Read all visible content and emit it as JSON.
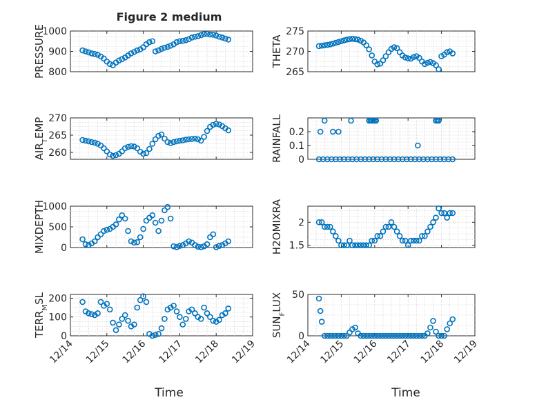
{
  "figure": {
    "title": "Figure 2 medium",
    "xlabel": "Time",
    "x_tick_labels": [
      "12/14",
      "12/15",
      "12/16",
      "12/17",
      "12/18",
      "12/19"
    ],
    "marker_color": "#0072BD"
  },
  "chart_data": [
    {
      "type": "scatter",
      "ylabel": "PRESSURE",
      "ylim": [
        800,
        1000
      ],
      "yticks": [
        800,
        900,
        1000
      ],
      "ytick_labels": [
        "800",
        "900",
        "1000"
      ],
      "minor_y_grid": true,
      "x": [
        "12/14 08:00",
        "12/14 10:00",
        "12/14 12:00",
        "12/14 14:00",
        "12/14 16:00",
        "12/14 18:00",
        "12/14 20:00",
        "12/14 22:00",
        "12/15 00:00",
        "12/15 02:00",
        "12/15 04:00",
        "12/15 06:00",
        "12/15 08:00",
        "12/15 10:00",
        "12/15 12:00",
        "12/15 14:00",
        "12/15 16:00",
        "12/15 18:00",
        "12/15 20:00",
        "12/15 22:00",
        "12/16 00:00",
        "12/16 02:00",
        "12/16 04:00",
        "12/16 06:00",
        "12/16 08:00",
        "12/16 10:00",
        "12/16 12:00",
        "12/16 14:00",
        "12/16 16:00",
        "12/16 18:00",
        "12/16 20:00",
        "12/16 22:00",
        "12/17 00:00",
        "12/17 02:00",
        "12/17 04:00",
        "12/17 06:00",
        "12/17 08:00",
        "12/17 10:00",
        "12/17 12:00",
        "12/17 14:00",
        "12/17 16:00",
        "12/17 18:00",
        "12/17 20:00",
        "12/17 22:00",
        "12/18 00:00",
        "12/18 02:00",
        "12/18 04:00",
        "12/18 06:00",
        "12/18 08:00"
      ],
      "y": [
        905,
        900,
        895,
        890,
        887,
        883,
        875,
        865,
        850,
        838,
        832,
        845,
        855,
        862,
        870,
        880,
        890,
        897,
        905,
        910,
        920,
        935,
        945,
        950,
        900,
        905,
        912,
        918,
        922,
        928,
        935,
        945,
        950,
        952,
        955,
        960,
        968,
        972,
        975,
        980,
        985,
        986,
        983,
        982,
        978,
        972,
        968,
        963,
        958
      ]
    },
    {
      "type": "scatter",
      "ylabel": "THETA",
      "ylim": [
        265,
        275
      ],
      "yticks": [
        265,
        270,
        275
      ],
      "ytick_labels": [
        "265",
        "270",
        "275"
      ],
      "minor_y_grid": true,
      "x": [
        "12/14 08:00",
        "12/14 10:00",
        "12/14 12:00",
        "12/14 14:00",
        "12/14 16:00",
        "12/14 18:00",
        "12/14 20:00",
        "12/14 22:00",
        "12/15 00:00",
        "12/15 02:00",
        "12/15 04:00",
        "12/15 06:00",
        "12/15 08:00",
        "12/15 10:00",
        "12/15 12:00",
        "12/15 14:00",
        "12/15 16:00",
        "12/15 18:00",
        "12/15 20:00",
        "12/15 22:00",
        "12/16 00:00",
        "12/16 02:00",
        "12/16 04:00",
        "12/16 06:00",
        "12/16 08:00",
        "12/16 10:00",
        "12/16 12:00",
        "12/16 14:00",
        "12/16 16:00",
        "12/16 18:00",
        "12/16 20:00",
        "12/16 22:00",
        "12/17 00:00",
        "12/17 02:00",
        "12/17 04:00",
        "12/17 06:00",
        "12/17 08:00",
        "12/17 10:00",
        "12/17 12:00",
        "12/17 14:00",
        "12/17 16:00",
        "12/17 18:00",
        "12/17 20:00",
        "12/17 22:00",
        "12/18 00:00",
        "12/18 02:00",
        "12/18 04:00",
        "12/18 06:00",
        "12/18 08:00"
      ],
      "y": [
        271.3,
        271.4,
        271.5,
        271.6,
        271.7,
        271.9,
        272.1,
        272.3,
        272.5,
        272.7,
        272.9,
        273.0,
        273.1,
        273.0,
        272.9,
        272.6,
        272.2,
        271.5,
        270.5,
        269.0,
        267.5,
        266.8,
        267.0,
        267.8,
        268.8,
        269.8,
        270.6,
        271.0,
        270.8,
        269.8,
        269.0,
        268.5,
        268.3,
        268.2,
        268.6,
        268.8,
        268.4,
        267.5,
        266.9,
        267.2,
        267.4,
        267.1,
        266.6,
        265.6,
        268.8,
        269.2,
        269.8,
        270.0,
        269.5
      ]
    },
    {
      "type": "scatter",
      "ylabel": "AIR_TEMP",
      "ylim": [
        258,
        270
      ],
      "yticks": [
        260,
        265,
        270
      ],
      "ytick_labels": [
        "260",
        "265",
        "270"
      ],
      "minor_y_grid": true,
      "x": [
        "12/14 08:00",
        "12/14 10:00",
        "12/14 12:00",
        "12/14 14:00",
        "12/14 16:00",
        "12/14 18:00",
        "12/14 20:00",
        "12/14 22:00",
        "12/15 00:00",
        "12/15 02:00",
        "12/15 04:00",
        "12/15 06:00",
        "12/15 08:00",
        "12/15 10:00",
        "12/15 12:00",
        "12/15 14:00",
        "12/15 16:00",
        "12/15 18:00",
        "12/15 20:00",
        "12/15 22:00",
        "12/16 00:00",
        "12/16 02:00",
        "12/16 04:00",
        "12/16 06:00",
        "12/16 08:00",
        "12/16 10:00",
        "12/16 12:00",
        "12/16 14:00",
        "12/16 16:00",
        "12/16 18:00",
        "12/16 20:00",
        "12/16 22:00",
        "12/17 00:00",
        "12/17 02:00",
        "12/17 04:00",
        "12/17 06:00",
        "12/17 08:00",
        "12/17 10:00",
        "12/17 12:00",
        "12/17 14:00",
        "12/17 16:00",
        "12/17 18:00",
        "12/17 20:00",
        "12/17 22:00",
        "12/18 00:00",
        "12/18 02:00",
        "12/18 04:00",
        "12/18 06:00",
        "12/18 08:00"
      ],
      "y": [
        263.6,
        263.4,
        263.2,
        263.0,
        262.8,
        262.5,
        262.0,
        261.2,
        260.3,
        259.4,
        259.0,
        259.2,
        259.6,
        260.3,
        261.2,
        261.6,
        261.8,
        261.7,
        261.2,
        260.2,
        259.6,
        259.8,
        261.0,
        262.5,
        263.8,
        264.8,
        265.2,
        264.0,
        263.0,
        262.7,
        263.0,
        263.2,
        263.4,
        263.5,
        263.7,
        263.8,
        263.9,
        264.0,
        263.8,
        263.4,
        264.5,
        266.2,
        267.4,
        268.0,
        268.3,
        268.1,
        267.6,
        267.0,
        266.4
      ]
    },
    {
      "type": "scatter",
      "ylabel": "RAINFALL",
      "ylim": [
        0,
        0.3
      ],
      "yticks": [
        0,
        0.1,
        0.2
      ],
      "ytick_labels": [
        "0",
        "0.1",
        "0.2"
      ],
      "minor_y_grid": true,
      "x": [
        "12/14 08:00",
        "12/14 11:00",
        "12/14 14:00",
        "12/14 17:00",
        "12/14 20:00",
        "12/14 23:00",
        "12/15 02:00",
        "12/15 05:00",
        "12/15 08:00",
        "12/15 11:00",
        "12/15 14:00",
        "12/15 17:00",
        "12/15 20:00",
        "12/15 23:00",
        "12/16 02:00",
        "12/16 05:00",
        "12/16 08:00",
        "12/16 11:00",
        "12/16 14:00",
        "12/16 17:00",
        "12/16 20:00",
        "12/16 23:00",
        "12/17 02:00",
        "12/17 05:00",
        "12/17 08:00",
        "12/17 11:00",
        "12/17 14:00",
        "12/17 17:00",
        "12/17 20:00",
        "12/17 23:00",
        "12/18 02:00",
        "12/18 05:00",
        "12/18 08:00",
        "12/14 09:00",
        "12/14 12:00",
        "12/14 18:00",
        "12/14 22:00",
        "12/15 07:00",
        "12/15 20:00",
        "12/15 21:00",
        "12/15 22:00",
        "12/15 23:00",
        "12/16 00:00",
        "12/16 01:00",
        "12/17 07:00",
        "12/17 20:00",
        "12/17 21:00",
        "12/17 22:00"
      ],
      "y": [
        0,
        0,
        0,
        0,
        0,
        0,
        0,
        0,
        0,
        0,
        0,
        0,
        0,
        0,
        0,
        0,
        0,
        0,
        0,
        0,
        0,
        0,
        0,
        0,
        0,
        0,
        0,
        0,
        0,
        0,
        0,
        0,
        0,
        0.2,
        0.28,
        0.2,
        0.2,
        0.28,
        0.28,
        0.28,
        0.28,
        0.28,
        0.28,
        0.28,
        0.1,
        0.28,
        0.28,
        0.28
      ]
    },
    {
      "type": "scatter",
      "ylabel": "MIXDEPTH",
      "ylim": [
        0,
        1000
      ],
      "yticks": [
        0,
        500,
        1000
      ],
      "ytick_labels": [
        "0",
        "500",
        "1000"
      ],
      "minor_y_grid": true,
      "x": [
        "12/14 08:00",
        "12/14 10:00",
        "12/14 12:00",
        "12/14 14:00",
        "12/14 16:00",
        "12/14 18:00",
        "12/14 20:00",
        "12/14 22:00",
        "12/15 00:00",
        "12/15 02:00",
        "12/15 04:00",
        "12/15 06:00",
        "12/15 08:00",
        "12/15 10:00",
        "12/15 12:00",
        "12/15 14:00",
        "12/15 16:00",
        "12/15 18:00",
        "12/15 20:00",
        "12/15 22:00",
        "12/16 00:00",
        "12/16 02:00",
        "12/16 04:00",
        "12/16 06:00",
        "12/16 08:00",
        "12/16 10:00",
        "12/16 12:00",
        "12/16 14:00",
        "12/16 16:00",
        "12/16 18:00",
        "12/16 20:00",
        "12/16 22:00",
        "12/17 00:00",
        "12/17 02:00",
        "12/17 04:00",
        "12/17 06:00",
        "12/17 08:00",
        "12/17 10:00",
        "12/17 12:00",
        "12/17 14:00",
        "12/17 16:00",
        "12/17 18:00",
        "12/17 20:00",
        "12/17 22:00",
        "12/18 00:00",
        "12/18 02:00",
        "12/18 04:00",
        "12/18 06:00",
        "12/18 08:00"
      ],
      "y": [
        200,
        80,
        60,
        100,
        150,
        250,
        320,
        400,
        430,
        450,
        500,
        560,
        680,
        780,
        700,
        400,
        150,
        120,
        130,
        250,
        450,
        650,
        720,
        780,
        600,
        400,
        650,
        900,
        980,
        700,
        30,
        10,
        40,
        60,
        100,
        150,
        120,
        60,
        20,
        10,
        30,
        80,
        250,
        320,
        10,
        40,
        60,
        100,
        150
      ]
    },
    {
      "type": "scatter",
      "ylabel": "H2OMIXRA",
      "ylim": [
        1.45,
        2.35
      ],
      "yticks": [
        1.5,
        2
      ],
      "ytick_labels": [
        "1.5",
        "2"
      ],
      "minor_y_grid": true,
      "x": [
        "12/14 08:00",
        "12/14 10:00",
        "12/14 12:00",
        "12/14 14:00",
        "12/14 16:00",
        "12/14 18:00",
        "12/14 20:00",
        "12/14 22:00",
        "12/15 00:00",
        "12/15 02:00",
        "12/15 04:00",
        "12/15 06:00",
        "12/15 08:00",
        "12/15 10:00",
        "12/15 12:00",
        "12/15 14:00",
        "12/15 16:00",
        "12/15 18:00",
        "12/15 20:00",
        "12/15 22:00",
        "12/16 00:00",
        "12/16 02:00",
        "12/16 04:00",
        "12/16 06:00",
        "12/16 08:00",
        "12/16 10:00",
        "12/16 12:00",
        "12/16 14:00",
        "12/16 16:00",
        "12/16 18:00",
        "12/16 20:00",
        "12/16 22:00",
        "12/17 00:00",
        "12/17 02:00",
        "12/17 04:00",
        "12/17 06:00",
        "12/17 08:00",
        "12/17 10:00",
        "12/17 12:00",
        "12/17 14:00",
        "12/17 16:00",
        "12/17 18:00",
        "12/17 20:00",
        "12/17 22:00",
        "12/18 00:00",
        "12/18 02:00",
        "12/18 04:00",
        "12/18 06:00",
        "12/18 08:00"
      ],
      "y": [
        2.0,
        2.0,
        1.9,
        1.9,
        1.9,
        1.8,
        1.7,
        1.6,
        1.5,
        1.5,
        1.5,
        1.6,
        1.5,
        1.5,
        1.5,
        1.5,
        1.5,
        1.5,
        1.5,
        1.6,
        1.6,
        1.7,
        1.7,
        1.8,
        1.9,
        1.9,
        2.0,
        1.9,
        1.8,
        1.7,
        1.6,
        1.6,
        1.5,
        1.6,
        1.6,
        1.6,
        1.6,
        1.7,
        1.7,
        1.8,
        1.9,
        2.0,
        2.1,
        2.3,
        2.2,
        2.2,
        2.1,
        2.2,
        2.2
      ]
    },
    {
      "type": "scatter",
      "ylabel": "TERR_MSL",
      "ylim": [
        0,
        220
      ],
      "yticks": [
        0,
        100,
        200
      ],
      "ytick_labels": [
        "0",
        "100",
        "200"
      ],
      "minor_y_grid": true,
      "x": [
        "12/14 08:00",
        "12/14 10:00",
        "12/14 12:00",
        "12/14 14:00",
        "12/14 16:00",
        "12/14 18:00",
        "12/14 20:00",
        "12/14 22:00",
        "12/15 00:00",
        "12/15 02:00",
        "12/15 04:00",
        "12/15 06:00",
        "12/15 08:00",
        "12/15 10:00",
        "12/15 12:00",
        "12/15 14:00",
        "12/15 16:00",
        "12/15 18:00",
        "12/15 20:00",
        "12/15 22:00",
        "12/16 00:00",
        "12/16 02:00",
        "12/16 04:00",
        "12/16 06:00",
        "12/16 08:00",
        "12/16 10:00",
        "12/16 12:00",
        "12/16 14:00",
        "12/16 16:00",
        "12/16 18:00",
        "12/16 20:00",
        "12/16 22:00",
        "12/17 00:00",
        "12/17 02:00",
        "12/17 04:00",
        "12/17 06:00",
        "12/17 08:00",
        "12/17 10:00",
        "12/17 12:00",
        "12/17 14:00",
        "12/17 16:00",
        "12/17 18:00",
        "12/17 20:00",
        "12/17 22:00",
        "12/18 00:00",
        "12/18 02:00",
        "12/18 04:00",
        "12/18 06:00",
        "12/18 08:00"
      ],
      "y": [
        180,
        130,
        120,
        115,
        110,
        120,
        180,
        160,
        170,
        140,
        70,
        30,
        60,
        90,
        110,
        80,
        50,
        60,
        150,
        190,
        210,
        180,
        10,
        0,
        5,
        10,
        40,
        90,
        140,
        150,
        160,
        130,
        100,
        60,
        90,
        130,
        140,
        120,
        100,
        90,
        150,
        120,
        100,
        80,
        75,
        85,
        110,
        120,
        145
      ]
    },
    {
      "type": "scatter",
      "ylabel": "SUN_FLUX",
      "ylim": [
        0,
        50
      ],
      "yticks": [
        0,
        50
      ],
      "ytick_labels": [
        "0",
        "50"
      ],
      "minor_y_grid": true,
      "x": [
        "12/14 08:00",
        "12/14 09:00",
        "12/14 10:00",
        "12/14 12:00",
        "12/14 14:00",
        "12/14 16:00",
        "12/14 18:00",
        "12/14 20:00",
        "12/14 22:00",
        "12/15 00:00",
        "12/15 02:00",
        "12/15 04:00",
        "12/15 06:00",
        "12/15 08:00",
        "12/15 10:00",
        "12/15 12:00",
        "12/15 14:00",
        "12/15 16:00",
        "12/15 18:00",
        "12/15 20:00",
        "12/15 22:00",
        "12/16 00:00",
        "12/16 02:00",
        "12/16 04:00",
        "12/16 06:00",
        "12/16 08:00",
        "12/16 10:00",
        "12/16 12:00",
        "12/16 14:00",
        "12/16 16:00",
        "12/16 18:00",
        "12/16 20:00",
        "12/16 22:00",
        "12/17 00:00",
        "12/17 02:00",
        "12/17 04:00",
        "12/17 06:00",
        "12/17 08:00",
        "12/17 10:00",
        "12/17 12:00",
        "12/17 14:00",
        "12/17 16:00",
        "12/17 18:00",
        "12/17 20:00",
        "12/17 22:00",
        "12/18 00:00",
        "12/18 02:00",
        "12/18 04:00",
        "12/18 06:00",
        "12/18 08:00"
      ],
      "y": [
        45,
        30,
        17,
        0,
        0,
        0,
        0,
        0,
        0,
        0,
        0,
        0,
        4,
        8,
        10,
        3,
        0,
        0,
        0,
        0,
        0,
        0,
        0,
        0,
        0,
        0,
        0,
        0,
        0,
        0,
        0,
        0,
        0,
        0,
        0,
        0,
        0,
        0,
        0,
        0,
        3,
        10,
        18,
        5,
        0,
        0,
        0,
        8,
        15,
        20
      ]
    }
  ]
}
